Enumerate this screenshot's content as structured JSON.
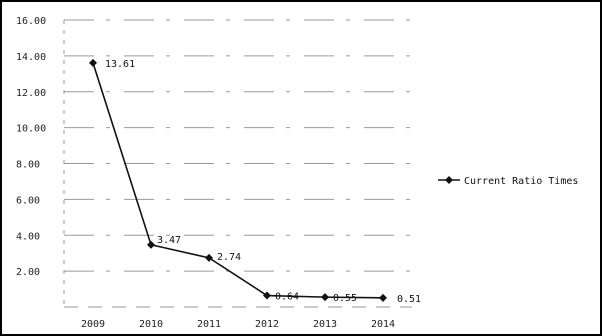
{
  "chart_data": {
    "type": "line",
    "categories": [
      "2009",
      "2010",
      "2011",
      "2012",
      "2013",
      "2014"
    ],
    "series": [
      {
        "name": "Current Ratio Times",
        "values": [
          13.61,
          3.47,
          2.74,
          0.64,
          0.55,
          0.51
        ],
        "labels": [
          "13.61",
          "3.47",
          "2.74",
          "0.64",
          "0.55",
          "0.51"
        ],
        "color": "#111111"
      }
    ],
    "y_ticks": [
      "16.00",
      "14.00",
      "12.00",
      "10.00",
      "8.00",
      "6.00",
      "4.00",
      "2.00"
    ],
    "ylim": [
      0,
      16
    ],
    "grid": true,
    "legend_position": "right",
    "title": "",
    "xlabel": "",
    "ylabel": ""
  }
}
